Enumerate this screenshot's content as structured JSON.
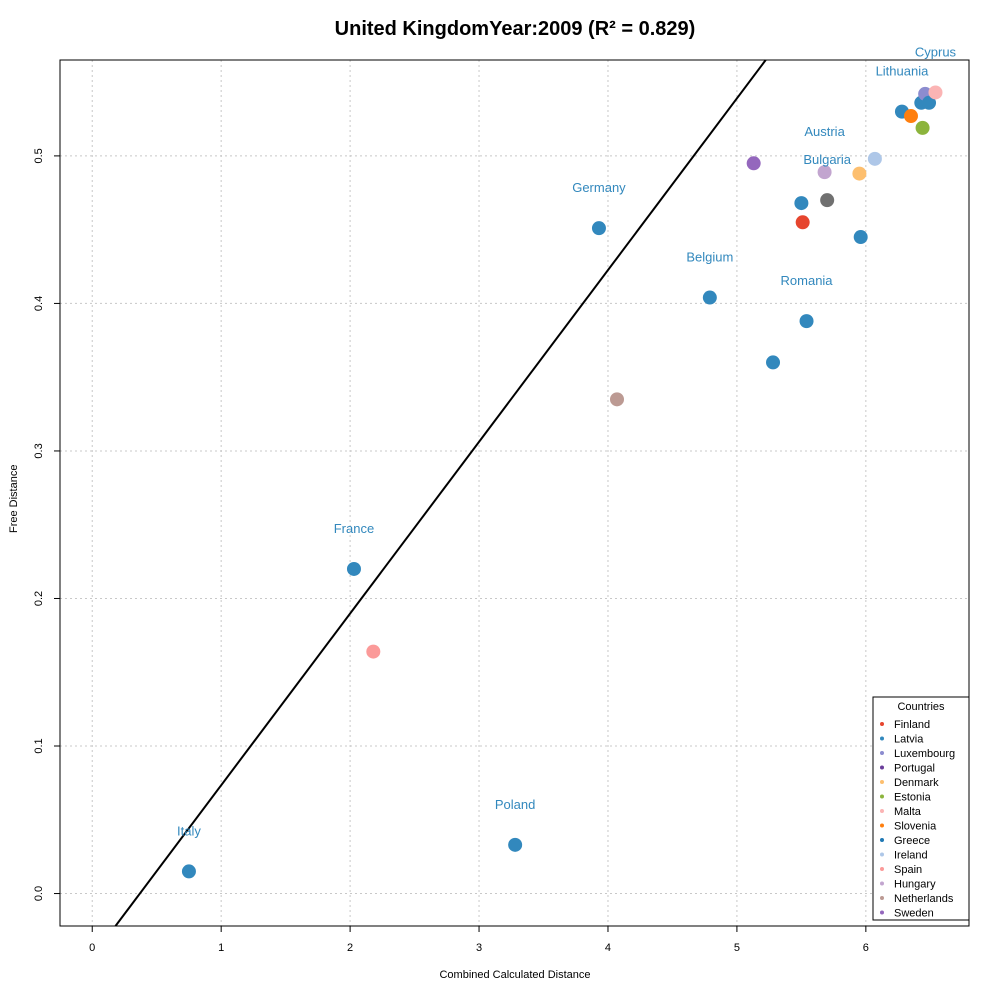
{
  "chart_data": {
    "type": "scatter",
    "title": "United KingdomYear:2009 (R² = 0.829)",
    "xlabel": "Combined Calculated Distance",
    "ylabel": "Free Distance",
    "xlim": [
      -0.25,
      6.8
    ],
    "ylim": [
      -0.022,
      0.565
    ],
    "x_ticks": [
      0,
      1,
      2,
      3,
      4,
      5,
      6
    ],
    "y_ticks": [
      0.0,
      0.1,
      0.2,
      0.3,
      0.4,
      0.5
    ],
    "x_tick_labels": [
      "0",
      "1",
      "2",
      "3",
      "4",
      "5",
      "6"
    ],
    "y_tick_labels": [
      "0.0",
      "0.1",
      "0.2",
      "0.3",
      "0.4",
      "0.5"
    ],
    "grid": true,
    "grid_style": "dotted",
    "regression_line": {
      "slope": 0.1164,
      "intercept": -0.043
    },
    "points": [
      {
        "x": 0.75,
        "y": 0.015,
        "color": "#3288bd",
        "label": "Italy"
      },
      {
        "x": 2.03,
        "y": 0.22,
        "color": "#3288bd",
        "label": "France"
      },
      {
        "x": 2.18,
        "y": 0.164,
        "color": "#fb9a99",
        "label": ""
      },
      {
        "x": 3.28,
        "y": 0.033,
        "color": "#3288bd",
        "label": "Poland"
      },
      {
        "x": 3.93,
        "y": 0.451,
        "color": "#3288bd",
        "label": "Germany"
      },
      {
        "x": 4.07,
        "y": 0.335,
        "color": "#bc9a93",
        "label": ""
      },
      {
        "x": 4.79,
        "y": 0.404,
        "color": "#3288bd",
        "label": "Belgium"
      },
      {
        "x": 5.13,
        "y": 0.495,
        "color": "#9467bd",
        "label": ""
      },
      {
        "x": 5.28,
        "y": 0.36,
        "color": "#3288bd",
        "label": ""
      },
      {
        "x": 5.5,
        "y": 0.468,
        "color": "#3288bd",
        "label": ""
      },
      {
        "x": 5.51,
        "y": 0.455,
        "color": "#e6452e",
        "label": ""
      },
      {
        "x": 5.54,
        "y": 0.388,
        "color": "#3288bd",
        "label": "Romania"
      },
      {
        "x": 5.68,
        "y": 0.489,
        "color": "#c2a5cf",
        "label": "Austria"
      },
      {
        "x": 5.7,
        "y": 0.47,
        "color": "#707070",
        "label": "Bulgaria"
      },
      {
        "x": 5.95,
        "y": 0.488,
        "color": "#fdbf6f",
        "label": ""
      },
      {
        "x": 5.96,
        "y": 0.445,
        "color": "#3288bd",
        "label": ""
      },
      {
        "x": 6.07,
        "y": 0.498,
        "color": "#aec7e8",
        "label": ""
      },
      {
        "x": 6.28,
        "y": 0.53,
        "color": "#3288bd",
        "label": "Lithuania"
      },
      {
        "x": 6.35,
        "y": 0.527,
        "color": "#ff7f0e",
        "label": ""
      },
      {
        "x": 6.43,
        "y": 0.536,
        "color": "#3288bd",
        "label": ""
      },
      {
        "x": 6.44,
        "y": 0.519,
        "color": "#8cb43c",
        "label": ""
      },
      {
        "x": 6.46,
        "y": 0.542,
        "color": "#8c8ccf",
        "label": ""
      },
      {
        "x": 6.49,
        "y": 0.536,
        "color": "#3288bd",
        "label": ""
      },
      {
        "x": 6.54,
        "y": 0.543,
        "color": "#fbb4b4",
        "label": "Cyprus"
      }
    ],
    "legend": {
      "title": "Countries",
      "position": "bottom-right",
      "entries": [
        {
          "name": "Finland",
          "color": "#e6452e"
        },
        {
          "name": "Latvia",
          "color": "#3288bd"
        },
        {
          "name": "Luxembourg",
          "color": "#8c8ccf"
        },
        {
          "name": "Portugal",
          "color": "#6a3d9a"
        },
        {
          "name": "Denmark",
          "color": "#fdbf6f"
        },
        {
          "name": "Estonia",
          "color": "#8cb43c"
        },
        {
          "name": "Malta",
          "color": "#fbb4b4"
        },
        {
          "name": "Slovenia",
          "color": "#ff7f0e"
        },
        {
          "name": "Greece",
          "color": "#1f78b4"
        },
        {
          "name": "Ireland",
          "color": "#aec7e8"
        },
        {
          "name": "Spain",
          "color": "#fb9a99"
        },
        {
          "name": "Hungary",
          "color": "#c2a5cf"
        },
        {
          "name": "Netherlands",
          "color": "#bc9a93"
        },
        {
          "name": "Sweden",
          "color": "#9467bd"
        }
      ]
    },
    "label_color": "#3288bd"
  }
}
